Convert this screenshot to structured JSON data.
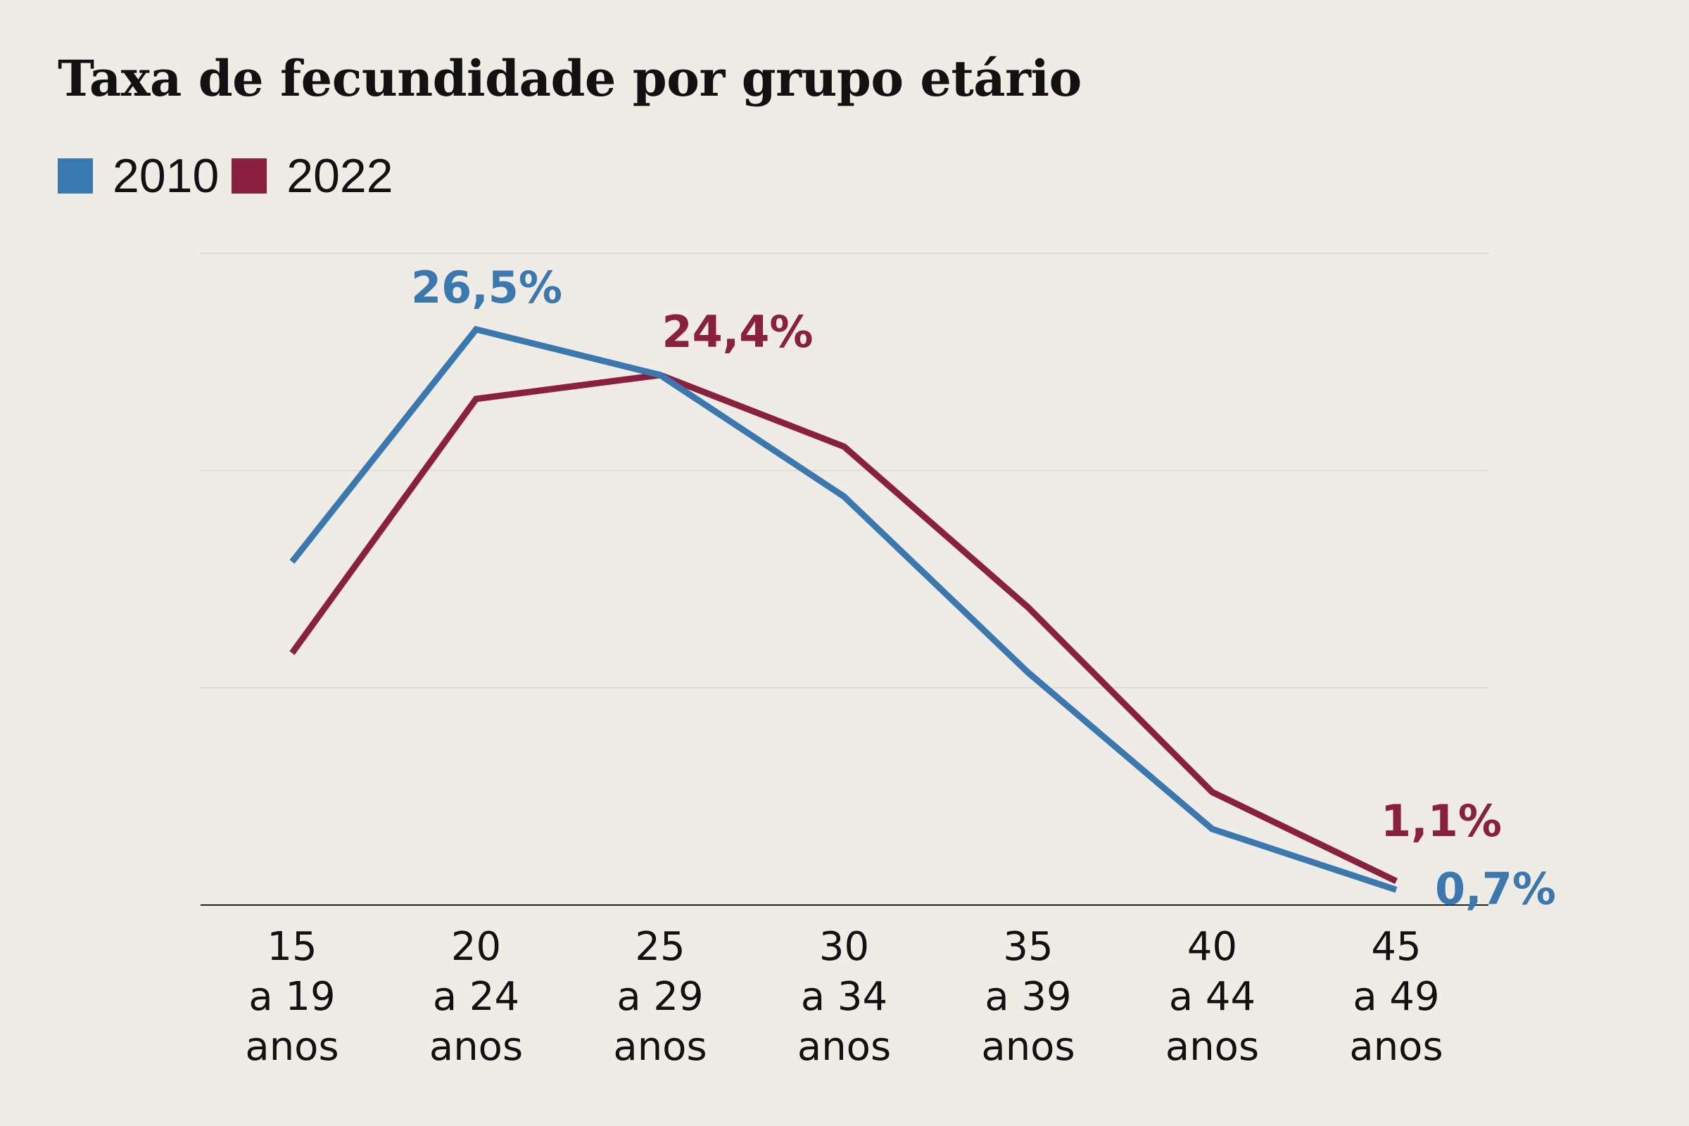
{
  "chart_data": {
    "type": "line",
    "title": "Taxa de fecundidade por grupo etário",
    "categories": [
      [
        "15",
        "a 19",
        "anos"
      ],
      [
        "20",
        "a 24",
        "anos"
      ],
      [
        "25",
        "a 29",
        "anos"
      ],
      [
        "30",
        "a 34",
        "anos"
      ],
      [
        "35",
        "a 39",
        "anos"
      ],
      [
        "40",
        "a 44",
        "anos"
      ],
      [
        "45",
        "a 49",
        "anos"
      ]
    ],
    "series": [
      {
        "name": "2010",
        "color": "#3a78b0",
        "values": [
          15.8,
          26.5,
          24.4,
          18.8,
          10.7,
          3.5,
          0.7
        ],
        "labels": [
          null,
          "26,5%",
          null,
          null,
          null,
          null,
          "0,7%"
        ]
      },
      {
        "name": "2022",
        "color": "#8b1f40",
        "values": [
          11.6,
          23.3,
          24.4,
          21.1,
          13.7,
          5.2,
          1.1
        ],
        "labels": [
          null,
          null,
          "24,4%",
          null,
          null,
          null,
          "1,1%"
        ]
      }
    ],
    "ylim": [
      0,
      30
    ],
    "gridlines": [
      0,
      10,
      20,
      30
    ],
    "grid": true,
    "legend": "top-left",
    "xlabel": "",
    "ylabel": ""
  }
}
